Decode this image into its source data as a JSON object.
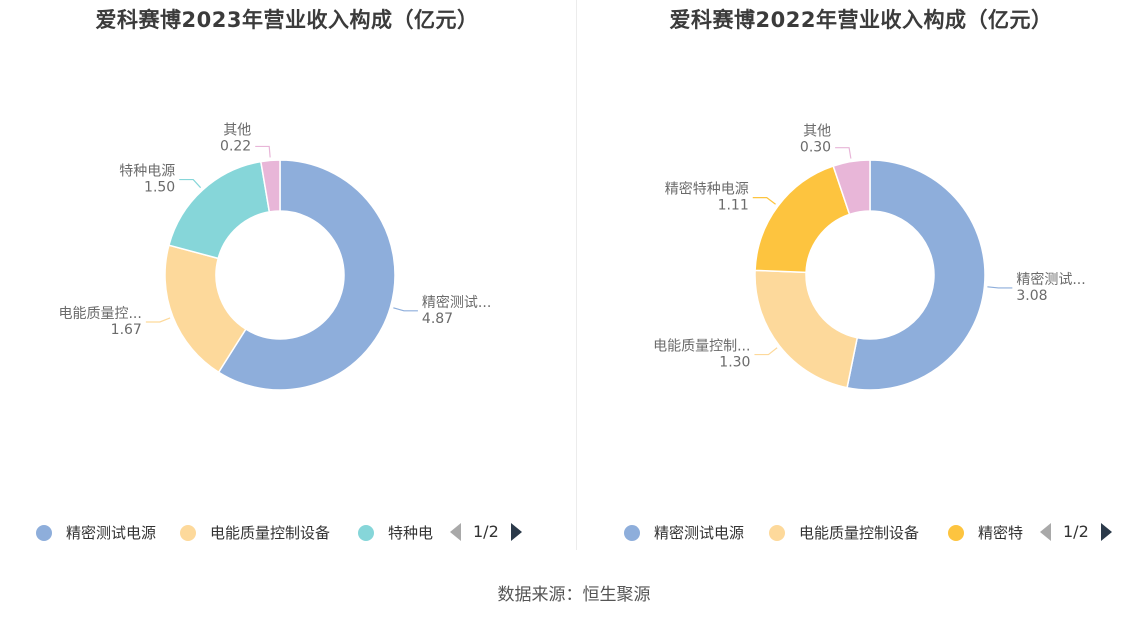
{
  "source": "数据来源：恒生聚源",
  "chart_data": [
    {
      "type": "pie",
      "variant": "donut",
      "title": "爱科赛博2023年营业收入构成（亿元）",
      "slices": [
        {
          "name": "精密测试电源",
          "label": "精密测试...",
          "value": 4.87,
          "display": "4.87",
          "color": "#8eaedb"
        },
        {
          "name": "电能质量控制设备",
          "label": "电能质量控...",
          "value": 1.67,
          "display": "1.67",
          "color": "#fdd99b"
        },
        {
          "name": "特种电源",
          "label": "特种电源",
          "value": 1.5,
          "display": "1.50",
          "color": "#86d6d9"
        },
        {
          "name": "其他",
          "label": "其他",
          "value": 0.22,
          "display": "0.22",
          "color": "#e8b6d8"
        }
      ],
      "legend": {
        "placement": "bottom",
        "items": [
          "精密测试电源",
          "电能质量控制设备",
          "特种电"
        ],
        "page": "1/2"
      }
    },
    {
      "type": "pie",
      "variant": "donut",
      "title": "爱科赛博2022年营业收入构成（亿元）",
      "slices": [
        {
          "name": "精密测试电源",
          "label": "精密测试...",
          "value": 3.08,
          "display": "3.08",
          "color": "#8eaedb"
        },
        {
          "name": "电能质量控制设备",
          "label": "电能质量控制...",
          "value": 1.3,
          "display": "1.30",
          "color": "#fdd99b"
        },
        {
          "name": "精密特种电源",
          "label": "精密特种电源",
          "value": 1.11,
          "display": "1.11",
          "color": "#fdc43f"
        },
        {
          "name": "其他",
          "label": "其他",
          "value": 0.3,
          "display": "0.30",
          "color": "#e8b6d8"
        }
      ],
      "legend": {
        "placement": "bottom",
        "items": [
          "精密测试电源",
          "电能质量控制设备",
          "精密特"
        ],
        "page": "1/2"
      }
    }
  ]
}
